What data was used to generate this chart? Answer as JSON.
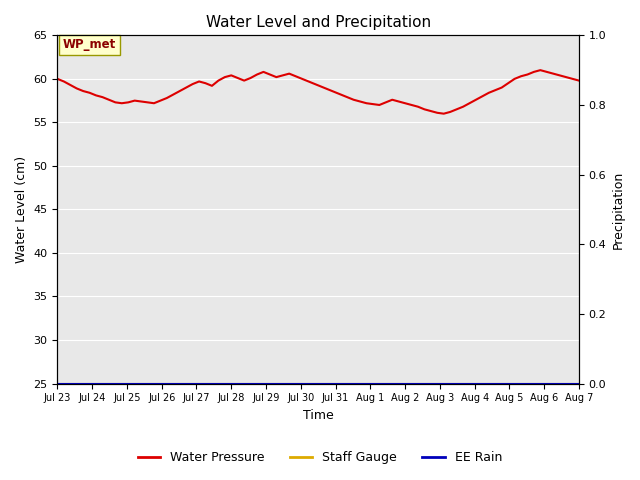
{
  "title": "Water Level and Precipitation",
  "xlabel": "Time",
  "ylabel_left": "Water Level (cm)",
  "ylabel_right": "Precipitation",
  "ylim_left": [
    25,
    65
  ],
  "ylim_right": [
    0.0,
    1.0
  ],
  "yticks_left": [
    25,
    30,
    35,
    40,
    45,
    50,
    55,
    60,
    65
  ],
  "yticks_right": [
    0.0,
    0.2,
    0.4,
    0.6,
    0.8,
    1.0
  ],
  "xtick_labels": [
    "Jul 23",
    "Jul 24",
    "Jul 25",
    "Jul 26",
    "Jul 27",
    "Jul 28",
    "Jul 29",
    "Jul 30",
    "Jul 31",
    "Aug 1",
    "Aug 2",
    "Aug 3",
    "Aug 4",
    "Aug 5",
    "Aug 6",
    "Aug 7"
  ],
  "annotation_text": "WP_met",
  "bg_color": "#e8e8e8",
  "fig_color": "#ffffff",
  "line_color_wp": "#dd0000",
  "line_color_sg": "#ddaa00",
  "line_color_rain": "#0000bb",
  "legend_labels": [
    "Water Pressure",
    "Staff Gauge",
    "EE Rain"
  ],
  "water_pressure": [
    60.0,
    59.7,
    59.3,
    58.9,
    58.6,
    58.4,
    58.1,
    57.9,
    57.6,
    57.3,
    57.2,
    57.3,
    57.5,
    57.4,
    57.3,
    57.2,
    57.5,
    57.8,
    58.2,
    58.6,
    59.0,
    59.4,
    59.7,
    59.5,
    59.2,
    59.8,
    60.2,
    60.4,
    60.1,
    59.8,
    60.1,
    60.5,
    60.8,
    60.5,
    60.2,
    60.4,
    60.6,
    60.3,
    60.0,
    59.7,
    59.4,
    59.1,
    58.8,
    58.5,
    58.2,
    57.9,
    57.6,
    57.4,
    57.2,
    57.1,
    57.0,
    57.3,
    57.6,
    57.4,
    57.2,
    57.0,
    56.8,
    56.5,
    56.3,
    56.1,
    56.0,
    56.2,
    56.5,
    56.8,
    57.2,
    57.6,
    58.0,
    58.4,
    58.7,
    59.0,
    59.5,
    60.0,
    60.3,
    60.5,
    60.8,
    61.0,
    60.8,
    60.6,
    60.4,
    60.2,
    60.0,
    59.8
  ],
  "staff_gauge": [
    25.0
  ],
  "ee_rain": [
    0.0
  ]
}
